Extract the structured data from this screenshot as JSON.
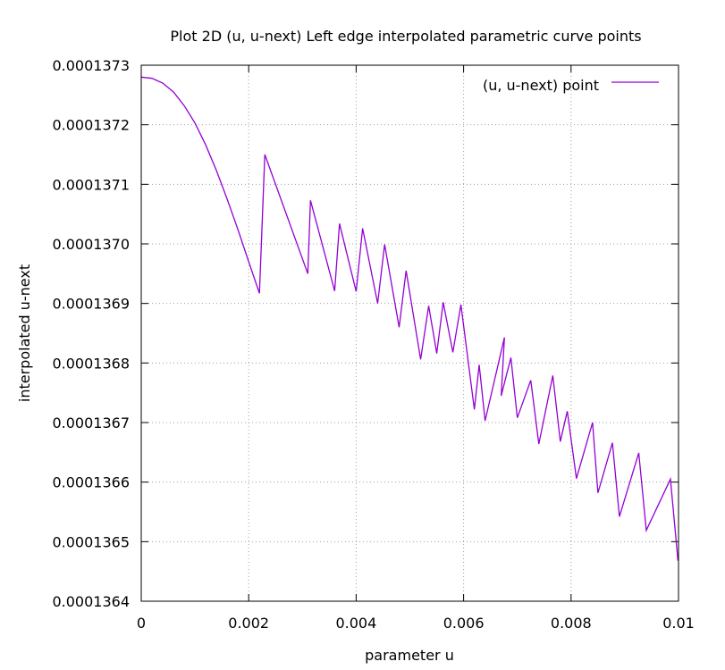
{
  "chart_data": {
    "type": "line",
    "title": "Plot 2D (u, u-next) Left edge interpolated parametric curve points",
    "xlabel": "parameter u",
    "ylabel": "interpolated u-next",
    "xlim": [
      0,
      0.01
    ],
    "ylim": [
      0.0001364,
      0.0001373
    ],
    "x_ticks": [
      0,
      0.002,
      0.004,
      0.006,
      0.008,
      0.01
    ],
    "x_tick_labels": [
      "0",
      "0.002",
      "0.004",
      "0.006",
      "0.008",
      "0.01"
    ],
    "y_ticks": [
      0.0001364,
      0.0001365,
      0.0001366,
      0.0001367,
      0.0001368,
      0.0001369,
      0.000137,
      0.0001371,
      0.0001372,
      0.0001373
    ],
    "y_tick_labels": [
      "0.0001364",
      "0.0001365",
      "0.0001366",
      "0.0001367",
      "0.0001368",
      "0.0001369",
      "0.0001370",
      "0.0001371",
      "0.0001372",
      "0.0001373"
    ],
    "grid": true,
    "legend_position": "top-right",
    "series": [
      {
        "name": "(u, u-next) point",
        "color": "#9400d3",
        "x": [
          0,
          0.0002,
          0.0004,
          0.0006,
          0.0008,
          0.001,
          0.0012,
          0.0014,
          0.0016,
          0.0018,
          0.002,
          0.0022,
          0.0023,
          0.0031,
          0.00315,
          0.0036,
          0.00369,
          0.004,
          0.00412,
          0.0044,
          0.00453,
          0.0048,
          0.00493,
          0.0052,
          0.00535,
          0.0055,
          0.00562,
          0.0058,
          0.00595,
          0.0062,
          0.00629,
          0.0064,
          0.00676,
          0.0067,
          0.00688,
          0.007,
          0.00725,
          0.0074,
          0.00766,
          0.0078,
          0.00793,
          0.0081,
          0.0084,
          0.0085,
          0.00877,
          0.0089,
          0.00926,
          0.0094,
          0.00985,
          0.00999
        ],
        "y": [
          0.00013728,
          0.000137278,
          0.00013727,
          0.000137255,
          0.000137232,
          0.000137203,
          0.000137166,
          0.000137123,
          0.000137075,
          0.000137024,
          0.00013697,
          0.000136917,
          0.00013715,
          0.00013695,
          0.000137073,
          0.000136921,
          0.000137034,
          0.00013692,
          0.000137026,
          0.0001369,
          0.000136999,
          0.00013686,
          0.000136955,
          0.000136806,
          0.000136896,
          0.000136816,
          0.000136902,
          0.000136818,
          0.000136898,
          0.000136722,
          0.000136797,
          0.000136703,
          0.000136843,
          0.000136745,
          0.000136809,
          0.000136708,
          0.000136771,
          0.000136664,
          0.000136779,
          0.000136668,
          0.000136719,
          0.000136606,
          0.0001367,
          0.000136582,
          0.000136666,
          0.000136542,
          0.000136649,
          0.000136519,
          0.000136605,
          0.000136468
        ]
      }
    ]
  }
}
